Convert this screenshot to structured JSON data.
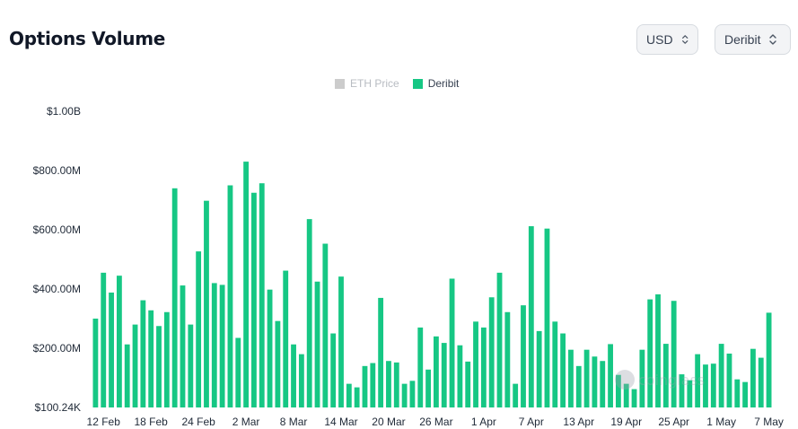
{
  "header": {
    "title": "Options Volume",
    "currency_select": "USD",
    "exchange_select": "Deribit"
  },
  "legend": [
    {
      "label": "ETH Price",
      "color": "#cccccc",
      "active": false
    },
    {
      "label": "Deribit",
      "color": "#16c784",
      "active": true
    }
  ],
  "watermark": "coinglass",
  "chart_data": {
    "type": "bar",
    "title": "Options Volume",
    "series": [
      {
        "name": "Deribit",
        "color": "#16c784",
        "values": [
          300,
          455,
          388,
          445,
          213,
          280,
          362,
          328,
          275,
          322,
          740,
          412,
          280,
          527,
          698,
          420,
          414,
          750,
          235,
          830,
          725,
          757,
          398,
          292,
          462,
          213,
          180,
          636,
          425,
          553,
          250,
          442,
          80,
          68,
          140,
          150,
          370,
          157,
          152,
          80,
          90,
          270,
          128,
          240,
          218,
          435,
          210,
          155,
          290,
          270,
          372,
          455,
          322,
          80,
          345,
          612,
          258,
          604,
          290,
          250,
          195,
          140,
          195,
          172,
          157,
          214,
          110,
          80,
          62,
          195,
          365,
          382,
          215,
          360,
          112,
          92,
          180,
          145,
          148,
          215,
          182,
          95,
          86,
          198,
          168,
          320
        ]
      }
    ],
    "x_start": "2023-02-11",
    "x_tick_labels": [
      "12 Feb",
      "18 Feb",
      "24 Feb",
      "2 Mar",
      "8 Mar",
      "14 Mar",
      "20 Mar",
      "26 Mar",
      "1 Apr",
      "7 Apr",
      "13 Apr",
      "19 Apr",
      "25 Apr",
      "1 May",
      "7 May"
    ],
    "x_tick_indices": [
      1,
      7,
      13,
      19,
      25,
      31,
      37,
      43,
      49,
      55,
      61,
      67,
      73,
      79,
      85
    ],
    "y_unit": "M USD",
    "ylim": [
      0.1002,
      1000
    ],
    "y_tick_values": [
      0.1002,
      200,
      400,
      600,
      800,
      1000
    ],
    "y_tick_labels": [
      "$100.24K",
      "$200.00M",
      "$400.00M",
      "$600.00M",
      "$800.00M",
      "$1.00B"
    ],
    "grid": false,
    "legend_position": "top-center"
  }
}
